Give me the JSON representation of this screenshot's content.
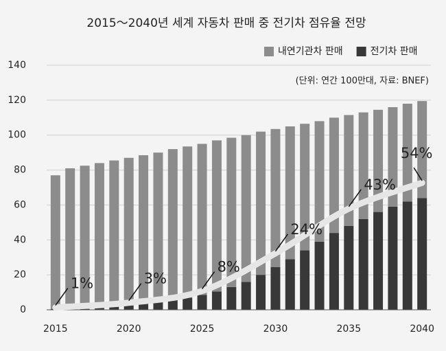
{
  "chart_data": {
    "type": "bar",
    "stacked": true,
    "title": "2015～2040년 세계 자동차 판매 중 전기차 점유율 전망",
    "note": "(단위: 연간 100만대, 자료: BNEF)",
    "x": [
      2015,
      2016,
      2017,
      2018,
      2019,
      2020,
      2021,
      2022,
      2023,
      2024,
      2025,
      2026,
      2027,
      2028,
      2029,
      2030,
      2031,
      2032,
      2033,
      2034,
      2035,
      2036,
      2037,
      2038,
      2039,
      2040
    ],
    "xlim": [
      2014.4,
      2040.6
    ],
    "xticks": [
      2015,
      2020,
      2025,
      2030,
      2035,
      2040
    ],
    "ylim": [
      0,
      140
    ],
    "yticks": [
      0,
      20,
      40,
      60,
      80,
      100,
      120,
      140
    ],
    "grid": true,
    "legend": "top-right",
    "series": [
      {
        "name": "전기차 판매",
        "color": "#383838",
        "values": [
          0.5,
          0.7,
          1,
          1.3,
          1.8,
          2.5,
          3.5,
          4.5,
          5.5,
          7,
          8.5,
          10.5,
          13,
          16,
          20,
          24.5,
          29,
          34,
          39,
          44,
          48,
          52,
          56,
          59,
          62,
          64
        ]
      },
      {
        "name": "내연기관차 판매",
        "color": "#8c8c8c",
        "values": [
          76.5,
          80.3,
          81.5,
          82.7,
          83.7,
          84.5,
          85,
          85.5,
          86.5,
          86.5,
          86.5,
          86.5,
          85.5,
          84,
          82,
          79,
          76,
          72.5,
          69,
          66,
          63.5,
          61,
          58.5,
          57,
          56,
          55.5
        ]
      }
    ],
    "share": {
      "type": "line",
      "color": "#e6e6e6",
      "axis": "y2",
      "x": [
        2015,
        2020,
        2025,
        2030,
        2035,
        2040
      ],
      "values": [
        1,
        3,
        8,
        24,
        43,
        54
      ],
      "value_labels": [
        "1%",
        "3%",
        "8%",
        "24%",
        "43%",
        "54%"
      ]
    },
    "y2lim": [
      0,
      104
    ]
  }
}
